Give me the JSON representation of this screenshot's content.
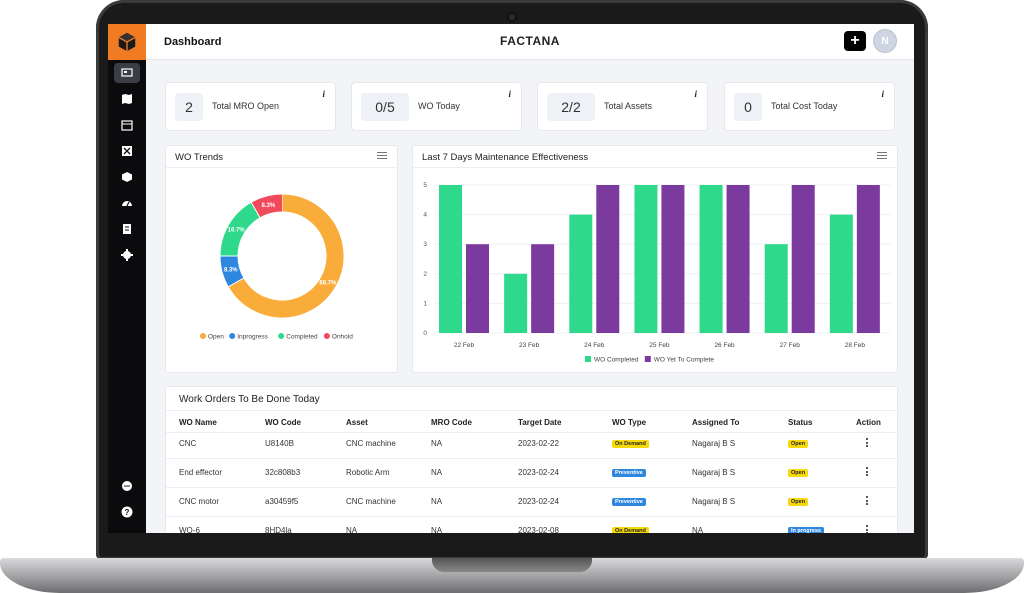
{
  "header": {
    "page_title": "Dashboard",
    "app_title": "FACTANA",
    "add_label": "+",
    "avatar_initial": "N"
  },
  "sidebar": {
    "icons": [
      "dashboard-icon",
      "map-icon",
      "calendar-icon",
      "tools-icon",
      "assets-icon",
      "gauge-icon",
      "report-icon",
      "settings-icon",
      "chat-icon",
      "help-icon"
    ]
  },
  "kpis": [
    {
      "value": "2",
      "label": "Total MRO Open",
      "info": "i"
    },
    {
      "value": "0/5",
      "label": "WO Today",
      "info": "i"
    },
    {
      "value": "2/2",
      "label": "Total Assets",
      "info": "i"
    },
    {
      "value": "0",
      "label": "Total Cost Today",
      "info": "i"
    }
  ],
  "wo_trends": {
    "title": "WO Trends",
    "legend": [
      "Open",
      "Inprogress",
      "Completed",
      "Onhold"
    ],
    "colors": [
      "#f9ac3a",
      "#2e86de",
      "#2ed98c",
      "#f24a5d"
    ]
  },
  "effectiveness": {
    "title": "Last 7 Days Maintenance Effectiveness",
    "legend": [
      "WO Completed",
      "WO Yet To Complete"
    ],
    "colors": [
      "#2ed98c",
      "#7b3a9e"
    ]
  },
  "chart_data": [
    {
      "type": "pie",
      "title": "WO Trends",
      "labels": [
        "Open",
        "Inprogress",
        "Completed",
        "Onhold"
      ],
      "values": [
        66.7,
        8.3,
        16.7,
        8.3
      ],
      "slice_labels": [
        "66.7%",
        "8.3%",
        "16.7%",
        "8.3%"
      ]
    },
    {
      "type": "bar",
      "title": "Last 7 Days Maintenance Effectiveness",
      "categories": [
        "22 Feb",
        "23 Feb",
        "24 Feb",
        "25 Feb",
        "26 Feb",
        "27 Feb",
        "28 Feb"
      ],
      "series": [
        {
          "name": "WO Completed",
          "values": [
            5,
            2,
            4,
            5,
            5,
            3,
            4
          ]
        },
        {
          "name": "WO Yet To Complete",
          "values": [
            3,
            3,
            5,
            5,
            5,
            5,
            5
          ]
        }
      ],
      "ylim": [
        0,
        5
      ],
      "yticks": [
        "0",
        "1",
        "2",
        "3",
        "4",
        "5"
      ]
    }
  ],
  "table": {
    "title": "Work Orders To Be Done Today",
    "columns": [
      "WO Name",
      "WO Code",
      "Asset",
      "MRO Code",
      "Target Date",
      "WO Type",
      "Assigned To",
      "Status",
      "Action"
    ],
    "rows": [
      {
        "name": "CNC",
        "code": "U8140B",
        "asset": "CNC machine",
        "mro": "NA",
        "date": "2023-02-22",
        "type": "On Demand",
        "assigned": "Nagaraj B S",
        "status": "Open"
      },
      {
        "name": "End effector",
        "code": "32c808b3",
        "asset": "Robotic Arm",
        "mro": "NA",
        "date": "2023-02-24",
        "type": "Preventive",
        "assigned": "Nagaraj B S",
        "status": "Open"
      },
      {
        "name": "CNC motor",
        "code": "a30459f5",
        "asset": "CNC machine",
        "mro": "NA",
        "date": "2023-02-24",
        "type": "Preventive",
        "assigned": "Nagaraj B S",
        "status": "Open"
      },
      {
        "name": "WO-6",
        "code": "8HD4la",
        "asset": "NA",
        "mro": "NA",
        "date": "2023-02-08",
        "type": "On Demand",
        "assigned": "NA",
        "status": "In progress"
      }
    ]
  },
  "badge_colors": {
    "On Demand": "#f5d90a",
    "Preventive": "#2e86de",
    "Open": "#f5d90a",
    "In progress": "#2e86de"
  }
}
